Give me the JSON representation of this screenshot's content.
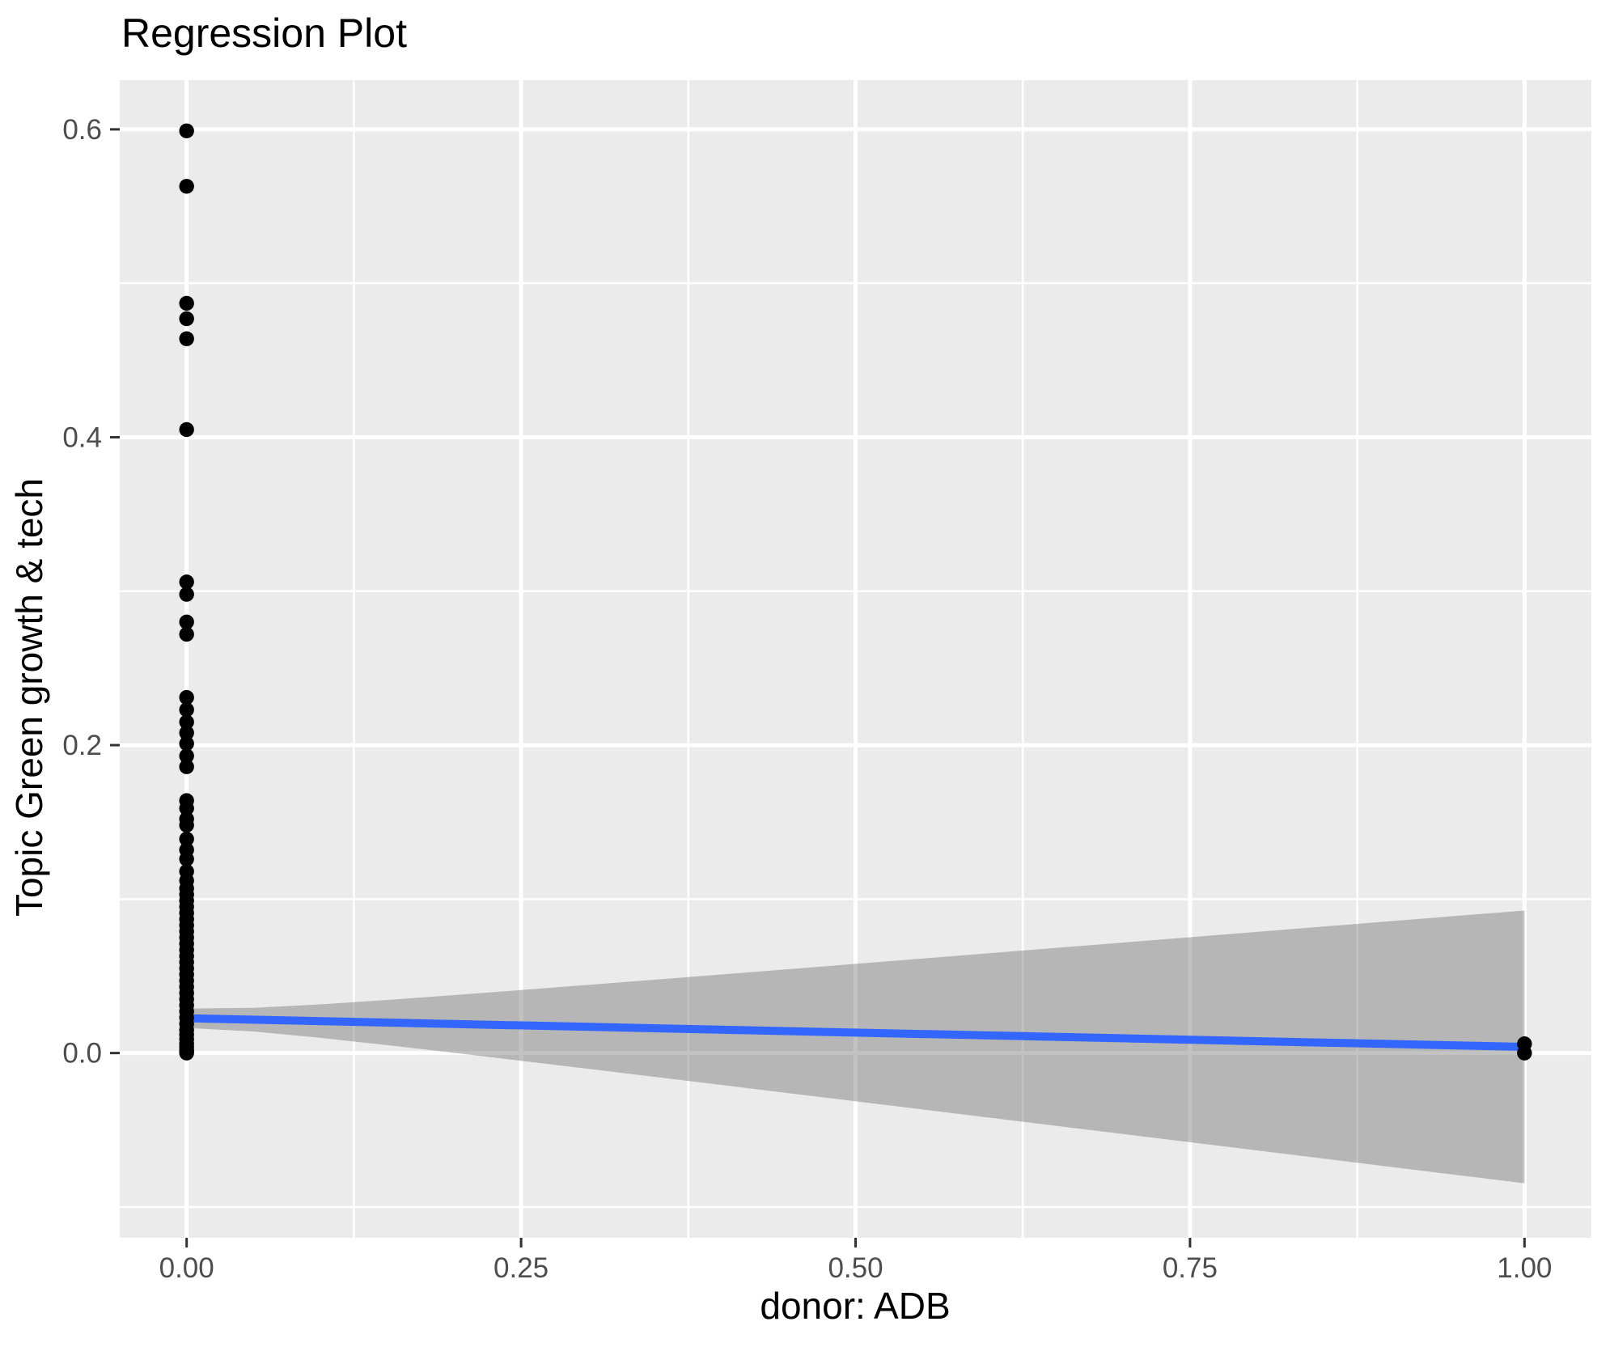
{
  "chart_data": {
    "type": "scatter",
    "title": "Regression Plot",
    "xlabel": "donor: ADB",
    "ylabel": "Topic Green growth & tech",
    "legend": "none",
    "grid": true,
    "panel_background": "#EBEBEB",
    "grid_color": "#FFFFFF",
    "xlim": [
      -0.05,
      1.05
    ],
    "ylim": [
      -0.12,
      0.632
    ],
    "x_ticks": {
      "values": [
        0,
        0.25,
        0.5,
        0.75,
        1.0
      ],
      "labels": [
        "0.00",
        "0.25",
        "0.50",
        "0.75",
        "1.00"
      ]
    },
    "y_ticks": {
      "values": [
        0,
        0.2,
        0.4,
        0.6
      ],
      "labels": [
        "0.0",
        "0.2",
        "0.4",
        "0.6"
      ]
    },
    "x_minor_gridlines": [
      0.125,
      0.375,
      0.625,
      0.875
    ],
    "y_minor_gridlines": [
      -0.1,
      0.1,
      0.3,
      0.5
    ],
    "series": [
      {
        "name": "observations at donor ADB = 0",
        "x": 0,
        "y": [
          0.599,
          0.563,
          0.487,
          0.477,
          0.464,
          0.405,
          0.306,
          0.298,
          0.28,
          0.272,
          0.231,
          0.223,
          0.215,
          0.208,
          0.201,
          0.193,
          0.186,
          0.164,
          0.159,
          0.152,
          0.148,
          0.139,
          0.132,
          0.126,
          0.118,
          0.112,
          0.107,
          0.103,
          0.099,
          0.095,
          0.091,
          0.087,
          0.083,
          0.079,
          0.075,
          0.071,
          0.067,
          0.063,
          0.059,
          0.055,
          0.051,
          0.047,
          0.043,
          0.039,
          0.035,
          0.031,
          0.027,
          0.023,
          0.019,
          0.015,
          0.012,
          0.009,
          0.006,
          0.004,
          0.002,
          0.001,
          0.0
        ]
      },
      {
        "name": "observations at donor ADB = 1",
        "x": 1,
        "y": [
          0.006,
          0.0
        ]
      }
    ],
    "regression_line": {
      "x0": 0,
      "y0": 0.0226,
      "x1": 1,
      "y1": 0.004
    },
    "confidence_band": {
      "x0": 0,
      "x1": 1,
      "center0": 0.0226,
      "center1": 0.004,
      "half_width0": 0.0063,
      "half_width1": 0.0886
    },
    "colors": {
      "point": "#000000",
      "line": "#3366FF",
      "band": "rgba(102,102,102,0.4)",
      "tick_text": "#4D4D4D",
      "tick_mark": "#333333",
      "title_text": "#000000"
    }
  }
}
